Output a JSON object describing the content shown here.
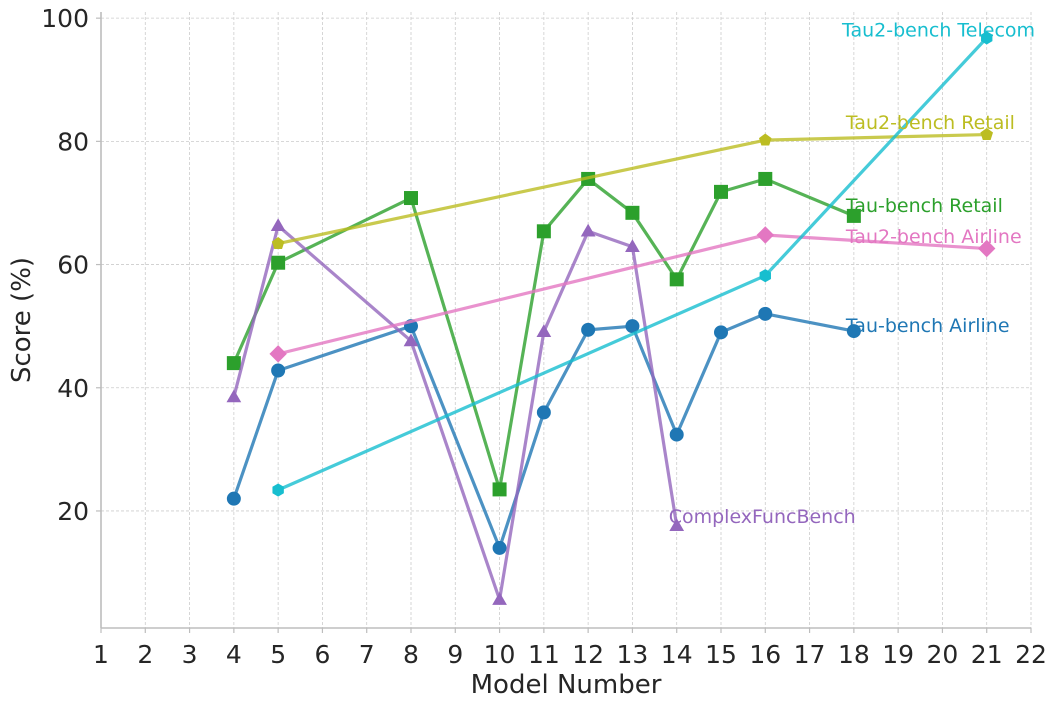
{
  "chart_data": {
    "type": "line",
    "title": "",
    "xlabel": "Model Number",
    "ylabel": "Score (%)",
    "xlim": [
      1,
      22
    ],
    "ylim": [
      1,
      101
    ],
    "xticks": [
      "1",
      "2",
      "3",
      "4",
      "5",
      "6",
      "7",
      "8",
      "9",
      "10",
      "11",
      "12",
      "13",
      "14",
      "15",
      "16",
      "17",
      "18",
      "19",
      "20",
      "21",
      "22"
    ],
    "yticks": [
      "20",
      "40",
      "60",
      "80",
      "100"
    ],
    "grid": true,
    "legend": "inline labels",
    "series": [
      {
        "name": "Tau-bench Airline",
        "color": "#1f77b4",
        "marker": "circle",
        "x": [
          4,
          5,
          8,
          10,
          11,
          12,
          13,
          14,
          15,
          16,
          18
        ],
        "y": [
          22,
          42.8,
          50,
          14,
          36,
          49.4,
          50,
          32.4,
          49,
          52,
          49.2
        ],
        "label_anchor": [
          18,
          50
        ]
      },
      {
        "name": "Tau-bench Retail",
        "color": "#2ca02c",
        "marker": "square",
        "x": [
          4,
          5,
          8,
          10,
          11,
          12,
          13,
          14,
          15,
          16,
          18
        ],
        "y": [
          44,
          60.3,
          70.8,
          23.5,
          65.4,
          73.9,
          68.4,
          57.6,
          71.8,
          73.9,
          67.9
        ],
        "label_anchor": [
          18,
          69.5
        ]
      },
      {
        "name": "ComplexFuncBench",
        "color": "#9467bd",
        "marker": "triangle",
        "x": [
          4,
          5,
          8,
          10,
          11,
          12,
          13,
          14
        ],
        "y": [
          38.5,
          66.3,
          47.6,
          5.6,
          49.1,
          65.4,
          62.9,
          17.6
        ],
        "label_anchor": [
          14,
          19
        ]
      },
      {
        "name": "Tau2-bench Airline",
        "color": "#e377c2",
        "marker": "diamond",
        "x": [
          5,
          16,
          21
        ],
        "y": [
          45.5,
          64.8,
          62.6
        ],
        "label_anchor": [
          18,
          64.5
        ]
      },
      {
        "name": "Tau2-bench Retail",
        "color": "#bcbd22",
        "marker": "pentagon",
        "x": [
          5,
          16,
          21
        ],
        "y": [
          63.4,
          80.2,
          81.1
        ],
        "label_anchor": [
          18,
          83
        ]
      },
      {
        "name": "Tau2-bench Telecom",
        "color": "#17becf",
        "marker": "hexagon",
        "x": [
          5,
          16,
          21
        ],
        "y": [
          23.4,
          58.2,
          96.8
        ],
        "label_anchor": [
          18,
          98
        ]
      }
    ]
  }
}
